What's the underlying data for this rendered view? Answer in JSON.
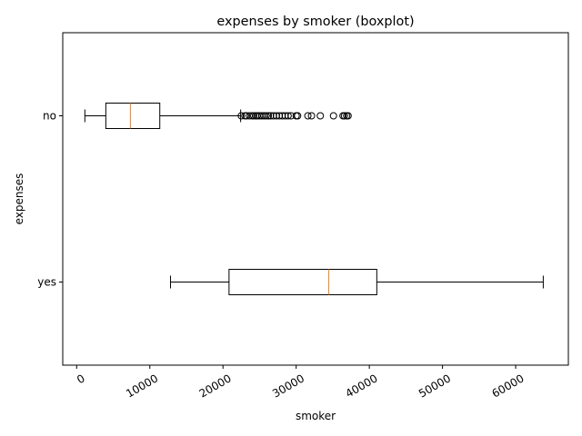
{
  "chart_data": {
    "type": "boxplot",
    "orientation": "horizontal",
    "title": "expenses by smoker (boxplot)",
    "xlabel": "smoker",
    "ylabel": "expenses",
    "xlim": [
      -1900,
      67200
    ],
    "xticks": [
      0,
      10000,
      20000,
      30000,
      40000,
      50000,
      60000
    ],
    "xtick_labels": [
      "0",
      "10000",
      "20000",
      "30000",
      "40000",
      "50000",
      "60000"
    ],
    "xtick_rotation_deg": 30,
    "grid": false,
    "categories": [
      "no",
      "yes"
    ],
    "boxes": [
      {
        "category": "no",
        "whisker_low": 1122,
        "q1": 3987,
        "median": 7345,
        "q3": 11363,
        "whisker_high": 22412,
        "outliers": [
          22500,
          23000,
          23200,
          23600,
          24000,
          24200,
          24500,
          24700,
          25000,
          25300,
          25600,
          25900,
          26200,
          26500,
          26900,
          27300,
          27700,
          28100,
          28500,
          28900,
          29300,
          30000,
          30200,
          31600,
          32100,
          33300,
          35100,
          36400,
          36600,
          36900,
          37100
        ]
      },
      {
        "category": "yes",
        "whisker_low": 12830,
        "q1": 20826,
        "median": 34456,
        "q3": 41019,
        "whisker_high": 63770,
        "outliers": []
      }
    ],
    "colors": {
      "box": "#000000",
      "median": "#ff7f0e",
      "outlier": "#000000"
    }
  }
}
